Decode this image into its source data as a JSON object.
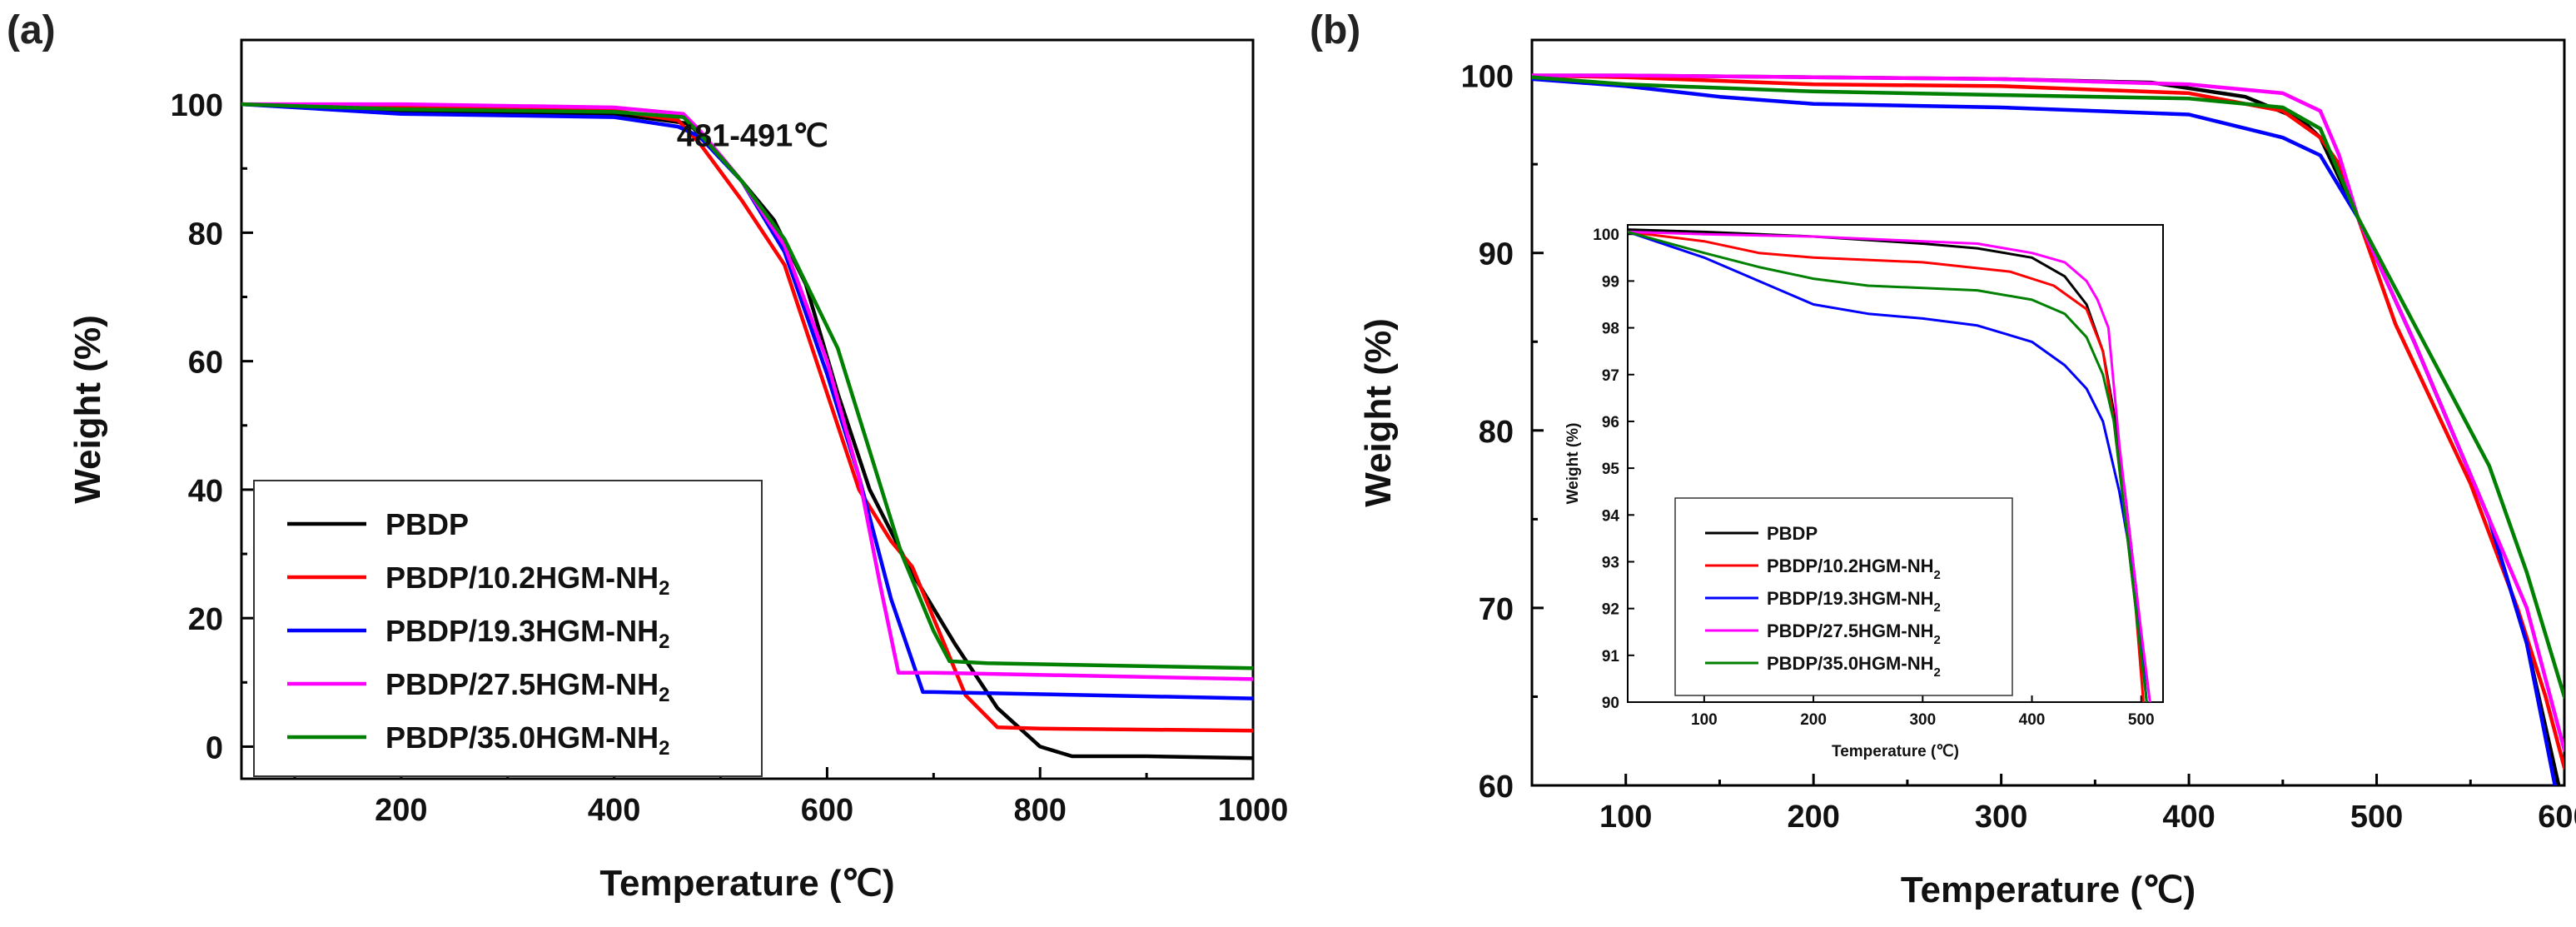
{
  "chart_data": [
    {
      "panel": "(a)",
      "type": "line",
      "xlabel": "Temperature (℃)",
      "ylabel": "Weight (%)",
      "xlim": [
        50,
        1000
      ],
      "ylim": [
        -5,
        110
      ],
      "xticks": [
        200,
        400,
        600,
        800,
        1000
      ],
      "yticks": [
        0,
        20,
        40,
        60,
        80,
        100
      ],
      "annotation": {
        "text": "481-491℃",
        "x": 530,
        "y": 95
      },
      "legend_location": "bottom-left",
      "series": [
        {
          "name": "PBDP",
          "color": "#000000",
          "x": [
            50,
            200,
            400,
            470,
            500,
            550,
            580,
            610,
            640,
            680,
            720,
            760,
            800,
            830,
            900,
            1000
          ],
          "y": [
            100,
            99,
            98.5,
            97,
            92,
            82,
            72,
            55,
            40,
            27,
            16,
            6,
            0,
            -1.5,
            -1.5,
            -1.8
          ]
        },
        {
          "name": "PBDP/10.2HGM-NH",
          "sub": "2",
          "color": "#ff0000",
          "x": [
            50,
            200,
            400,
            460,
            480,
            520,
            560,
            600,
            630,
            660,
            680,
            700,
            730,
            760,
            800,
            1000
          ],
          "y": [
            100,
            99.5,
            99,
            97.5,
            94,
            85,
            75,
            55,
            40,
            32,
            28,
            20,
            8,
            3,
            2.8,
            2.5
          ]
        },
        {
          "name": "PBDP/19.3HGM-NH",
          "sub": "2",
          "color": "#0000ff",
          "x": [
            50,
            200,
            400,
            460,
            480,
            520,
            560,
            600,
            630,
            660,
            690,
            700,
            1000
          ],
          "y": [
            100,
            98.5,
            98,
            96.5,
            95,
            88,
            77,
            58,
            42,
            23,
            8.5,
            8.5,
            7.5
          ]
        },
        {
          "name": "PBDP/27.5HGM-NH",
          "sub": "2",
          "color": "#ff00ff",
          "x": [
            50,
            200,
            400,
            465,
            480,
            520,
            560,
            600,
            630,
            650,
            667,
            700,
            1000
          ],
          "y": [
            100,
            100,
            99.5,
            98.5,
            96,
            88,
            78,
            60,
            42,
            25,
            11.5,
            11.5,
            10.5
          ]
        },
        {
          "name": "PBDP/35.0HGM-NH",
          "sub": "2",
          "color": "#008000",
          "x": [
            50,
            200,
            400,
            465,
            480,
            520,
            560,
            610,
            640,
            670,
            700,
            715,
            750,
            1000
          ],
          "y": [
            100,
            99.2,
            98.8,
            98,
            95.5,
            88,
            79,
            62,
            46,
            30,
            18,
            13.3,
            13,
            12.2
          ]
        }
      ]
    },
    {
      "panel": "(b)",
      "type": "line",
      "xlabel": "Temperature (℃)",
      "ylabel": "Weight (%)",
      "xlim": [
        50,
        600
      ],
      "ylim": [
        60,
        102
      ],
      "xticks": [
        100,
        200,
        300,
        400,
        500,
        600
      ],
      "yticks": [
        60,
        70,
        80,
        90,
        100
      ],
      "series": [
        {
          "name": "PBDP",
          "color": "#000000",
          "x": [
            50,
            100,
            200,
            300,
            380,
            430,
            460,
            470,
            490,
            520,
            560,
            580,
            597
          ],
          "y": [
            100,
            100,
            99.9,
            99.8,
            99.6,
            98.8,
            97.5,
            96.5,
            92,
            85,
            75,
            68,
            60
          ]
        },
        {
          "name": "PBDP/10.2HGM-NH",
          "sub": "2",
          "color": "#ff0000",
          "x": [
            50,
            100,
            200,
            300,
            400,
            450,
            470,
            480,
            490,
            510,
            550,
            575,
            590,
            600
          ],
          "y": [
            100,
            99.9,
            99.5,
            99.4,
            99,
            98,
            96.5,
            95,
            92,
            86,
            77,
            70,
            65,
            61
          ]
        },
        {
          "name": "PBDP/19.3HGM-NH",
          "sub": "2",
          "color": "#0000ff",
          "x": [
            50,
            100,
            150,
            200,
            300,
            400,
            450,
            470,
            490,
            520,
            560,
            580,
            595
          ],
          "y": [
            99.8,
            99.4,
            98.8,
            98.4,
            98.2,
            97.8,
            96.5,
            95.5,
            92,
            85,
            75,
            68,
            60
          ]
        },
        {
          "name": "PBDP/27.5HGM-NH",
          "sub": "2",
          "color": "#ff00ff",
          "x": [
            50,
            100,
            200,
            300,
            400,
            450,
            470,
            480,
            490,
            520,
            560,
            580,
            600
          ],
          "y": [
            100,
            100,
            99.9,
            99.8,
            99.5,
            99,
            98,
            95.5,
            92,
            85,
            75,
            70,
            62
          ]
        },
        {
          "name": "PBDP/35.0HGM-NH",
          "sub": "2",
          "color": "#008000",
          "x": [
            50,
            100,
            200,
            300,
            400,
            450,
            470,
            490,
            520,
            560,
            580,
            600
          ],
          "y": [
            99.9,
            99.5,
            99.1,
            98.9,
            98.7,
            98.2,
            97,
            92,
            86,
            78,
            72,
            65
          ]
        }
      ],
      "inset": {
        "type": "line",
        "xlabel": "Temperature (℃)",
        "ylabel": "Weight (%)",
        "xlim": [
          30,
          520
        ],
        "ylim": [
          90,
          100.2
        ],
        "xticks": [
          100,
          200,
          300,
          400,
          500
        ],
        "yticks": [
          90,
          91,
          92,
          93,
          94,
          95,
          96,
          97,
          98,
          99,
          100
        ],
        "legend_location": "bottom-left",
        "series": [
          {
            "name": "PBDP",
            "color": "#000000",
            "x": [
              30,
              100,
              200,
              300,
              350,
              400,
              430,
              450,
              465,
              475,
              485,
              495,
              505
            ],
            "y": [
              100.1,
              100.05,
              99.95,
              99.8,
              99.7,
              99.5,
              99.1,
              98.5,
              97.5,
              96.2,
              94.5,
              92.5,
              90
            ]
          },
          {
            "name": "PBDP/10.2HGM-NH",
            "sub": "2",
            "color": "#ff0000",
            "x": [
              30,
              100,
              150,
              200,
              300,
              380,
              420,
              450,
              465,
              475,
              485,
              495,
              502
            ],
            "y": [
              100.05,
              99.85,
              99.6,
              99.5,
              99.4,
              99.2,
              98.9,
              98.4,
              97.5,
              96,
              94,
              92,
              90
            ]
          },
          {
            "name": "PBDP/19.3HGM-NH",
            "sub": "2",
            "color": "#0000ff",
            "x": [
              30,
              100,
              150,
              200,
              250,
              300,
              350,
              400,
              430,
              450,
              465,
              480,
              495,
              505
            ],
            "y": [
              100.05,
              99.5,
              99,
              98.5,
              98.3,
              98.2,
              98.05,
              97.7,
              97.2,
              96.7,
              96,
              94.5,
              92.5,
              90
            ]
          },
          {
            "name": "PBDP/27.5HGM-NH",
            "sub": "2",
            "color": "#ff00ff",
            "x": [
              30,
              100,
              200,
              300,
              350,
              400,
              430,
              450,
              460,
              470,
              480,
              490,
              500,
              508
            ],
            "y": [
              100.05,
              100,
              99.95,
              99.85,
              99.8,
              99.6,
              99.4,
              99,
              98.6,
              98,
              95.5,
              93.5,
              91.5,
              90
            ]
          },
          {
            "name": "PBDP/35.0HGM-NH",
            "sub": "2",
            "color": "#008000",
            "x": [
              30,
              100,
              150,
              200,
              250,
              300,
              350,
              400,
              430,
              450,
              465,
              475,
              485,
              495,
              505
            ],
            "y": [
              100.05,
              99.6,
              99.3,
              99.05,
              98.9,
              98.85,
              98.8,
              98.6,
              98.3,
              97.8,
              97,
              96,
              94,
              92,
              90
            ]
          }
        ]
      }
    }
  ]
}
